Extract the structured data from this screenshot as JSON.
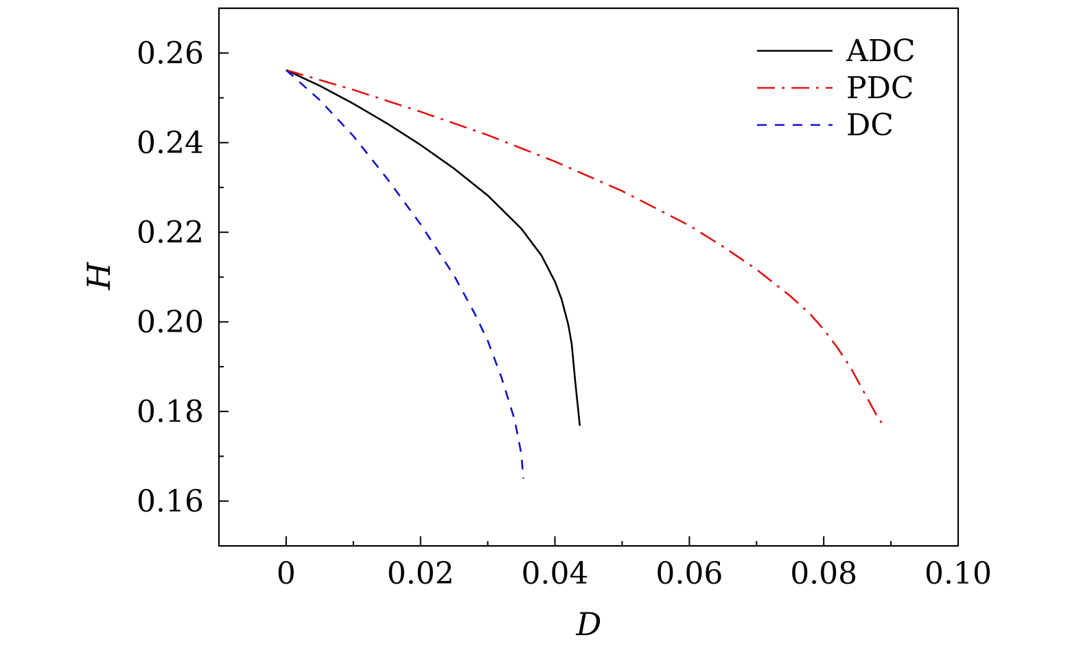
{
  "chart_data": {
    "type": "line",
    "xlabel": "D",
    "ylabel": "H",
    "xlim": [
      -0.01,
      0.1
    ],
    "ylim": [
      0.15,
      0.27
    ],
    "x_ticks": [
      {
        "value": 0,
        "label": "0"
      },
      {
        "value": 0.02,
        "label": "0.02"
      },
      {
        "value": 0.04,
        "label": "0.04"
      },
      {
        "value": 0.06,
        "label": "0.06"
      },
      {
        "value": 0.08,
        "label": "0.08"
      },
      {
        "value": 0.1,
        "label": "0.10"
      }
    ],
    "y_ticks": [
      {
        "value": 0.16,
        "label": "0.16"
      },
      {
        "value": 0.18,
        "label": "0.18"
      },
      {
        "value": 0.2,
        "label": "0.20"
      },
      {
        "value": 0.22,
        "label": "0.22"
      },
      {
        "value": 0.24,
        "label": "0.24"
      },
      {
        "value": 0.26,
        "label": "0.26"
      }
    ],
    "grid": false,
    "legend_position": "top-right",
    "series": [
      {
        "name": "ADC",
        "color": "#000000",
        "style": "solid",
        "x": [
          0,
          0.005,
          0.01,
          0.015,
          0.02,
          0.025,
          0.03,
          0.035,
          0.038,
          0.04,
          0.041,
          0.042,
          0.0425,
          0.043,
          0.0437
        ],
        "y": [
          0.2562,
          0.2527,
          0.2487,
          0.2443,
          0.2395,
          0.2342,
          0.2282,
          0.2208,
          0.2148,
          0.209,
          0.205,
          0.1993,
          0.195,
          0.187,
          0.1768
        ]
      },
      {
        "name": "PDC",
        "color": "#e01010",
        "style": "dashdot",
        "x": [
          0,
          0.01,
          0.02,
          0.03,
          0.04,
          0.05,
          0.06,
          0.065,
          0.07,
          0.075,
          0.078,
          0.08,
          0.082,
          0.084,
          0.086,
          0.088,
          0.0886
        ],
        "y": [
          0.2562,
          0.2518,
          0.2469,
          0.2417,
          0.2358,
          0.2292,
          0.2215,
          0.2168,
          0.2117,
          0.2058,
          0.2017,
          0.1983,
          0.1943,
          0.1898,
          0.1843,
          0.1788,
          0.1775
        ]
      },
      {
        "name": "DC",
        "color": "#1010cc",
        "style": "dashed",
        "x": [
          0,
          0.005,
          0.01,
          0.015,
          0.02,
          0.025,
          0.028,
          0.03,
          0.032,
          0.034,
          0.035,
          0.0353
        ],
        "y": [
          0.2562,
          0.2495,
          0.2415,
          0.232,
          0.2218,
          0.2103,
          0.202,
          0.1958,
          0.1878,
          0.1782,
          0.1705,
          0.165
        ]
      }
    ]
  }
}
